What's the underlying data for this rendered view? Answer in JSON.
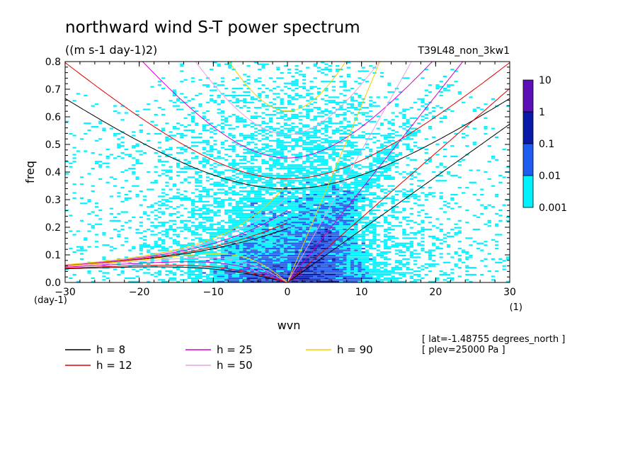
{
  "chart_data": {
    "type": "heatmap",
    "title": "northward wind S-T power spectrum",
    "subtitle": "((m s-1 day-1)2)",
    "run_label": "T39L48_non_3kw1",
    "xlabel": "wvn",
    "ylabel": "freq",
    "x_unit": "(1)",
    "y_unit": "(day-1)",
    "xlim": [
      -30,
      30
    ],
    "ylim": [
      0,
      0.8
    ],
    "x_ticks": [
      "-30",
      "-20",
      "-10",
      "0",
      "10",
      "20",
      "30"
    ],
    "y_ticks": [
      "0.0",
      "0.1",
      "0.2",
      "0.3",
      "0.4",
      "0.5",
      "0.6",
      "0.7",
      "0.8"
    ],
    "colorbar": {
      "levels": [
        "10",
        "1",
        "0.1",
        "0.01",
        "0.001"
      ],
      "colors": [
        "#5b0fb5",
        "#0a1aa8",
        "#1f5cf0",
        "#00f2ff"
      ]
    },
    "dispersion_curves": [
      {
        "label": "h =  8",
        "h": 8,
        "color": "#000000"
      },
      {
        "label": "h = 12",
        "h": 12,
        "color": "#e00000"
      },
      {
        "label": "h = 25",
        "h": 25,
        "color": "#d400c8"
      },
      {
        "label": "h = 50",
        "h": 50,
        "color": "#e8a0e0"
      },
      {
        "label": "h = 90",
        "h": 90,
        "color": "#f0d000"
      }
    ],
    "annotations": [
      "[ lat=-1.48755 degrees_north ]",
      "[ plev=25000 Pa ]"
    ]
  }
}
